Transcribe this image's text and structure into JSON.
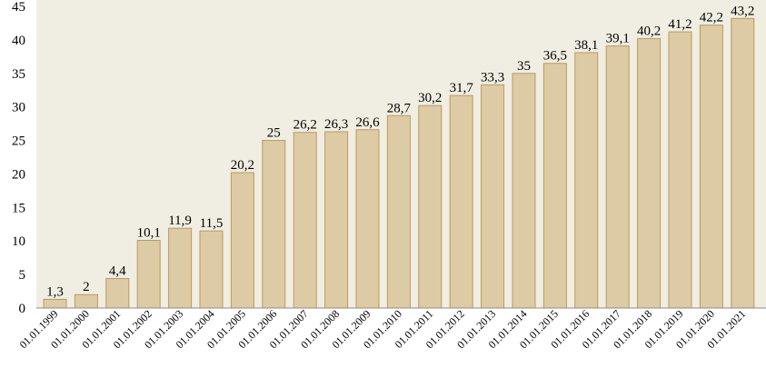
{
  "chart_data": {
    "type": "bar",
    "categories": [
      "01.01.1999",
      "01.01.2000",
      "01.01.2001",
      "01.01.2002",
      "01.01.2003",
      "01.01.2004",
      "01.01.2005",
      "01.01.2006",
      "01.01.2007",
      "01.01.2008",
      "01.01.2009",
      "01.01.2010",
      "01.01.2011",
      "01.01.2012",
      "01.01.2013",
      "01.01.2014",
      "01.01.2015",
      "01.01.2016",
      "01.01.2017",
      "01.01.2018",
      "01.01.2019",
      "01.01.2020",
      "01.01.2021"
    ],
    "values": [
      1.3,
      2,
      4.4,
      10.1,
      11.9,
      11.5,
      20.2,
      25,
      26.2,
      26.3,
      26.6,
      28.7,
      30.2,
      31.7,
      33.3,
      35,
      36.5,
      38.1,
      39.1,
      40.2,
      41.2,
      42.2,
      43.2
    ],
    "value_labels": [
      "1,3",
      "2",
      "4,4",
      "10,1",
      "11,9",
      "11,5",
      "20,2",
      "25",
      "26,2",
      "26,3",
      "26,6",
      "28,7",
      "30,2",
      "31,7",
      "33,3",
      "35",
      "36,5",
      "38,1",
      "39,1",
      "40,2",
      "41,2",
      "42,2",
      "43,2"
    ],
    "title": "",
    "xlabel": "",
    "ylabel": "",
    "ylim": [
      0,
      45
    ],
    "yticks": [
      "0",
      "5",
      "10",
      "15",
      "20",
      "25",
      "30",
      "35",
      "40",
      "45"
    ],
    "grid": false,
    "colors": {
      "background": "#f0ede2",
      "bar_fill": "#dccba5",
      "bar_stroke": "#c09a55"
    }
  }
}
